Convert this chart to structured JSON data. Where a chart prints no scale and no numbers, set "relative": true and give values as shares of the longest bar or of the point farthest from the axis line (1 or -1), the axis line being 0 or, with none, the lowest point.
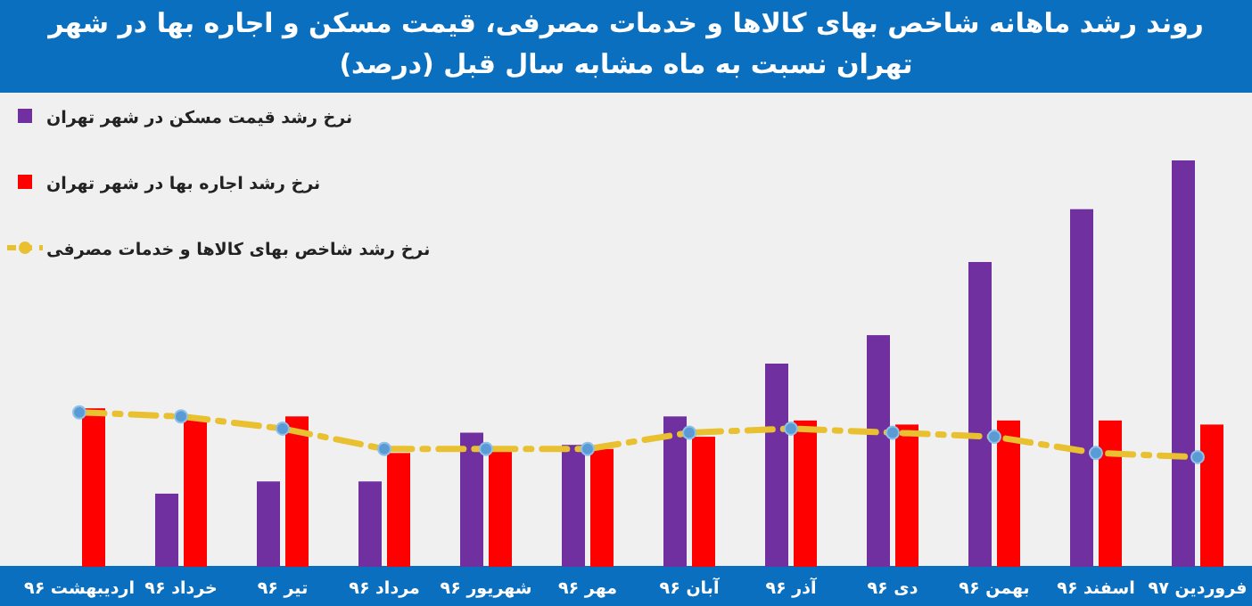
{
  "chart_data": {
    "type": "bar",
    "title": "روند رشد ماهانه شاخص بهای کالاها و خدمات مصرفی، قیمت مسکن و اجاره بها در شهر تهران نسبت به ماه مشابه سال قبل (درصد)",
    "relative": true,
    "legend": "top left",
    "marker": "circle",
    "line_style": "dashed",
    "categories": [
      "اردیبهشت ۹۶",
      "خرداد ۹۶",
      "تیر ۹۶",
      "مرداد ۹۶",
      "شهریور ۹۶",
      "مهر ۹۶",
      "آبان ۹۶",
      "آذر ۹۶",
      "دی ۹۶",
      "بهمن ۹۶",
      "اسفند ۹۶",
      "فروردین ۹۷"
    ],
    "series": [
      {
        "name": "نرخ رشد قیمت مسکن در شهر تهران",
        "color": "#7030a0",
        "values": [
          null,
          0.18,
          0.21,
          0.21,
          0.33,
          0.3,
          0.37,
          0.5,
          0.57,
          0.75,
          0.88,
          1
        ]
      },
      {
        "name": "نرخ رشد اجاره بها در شهر تهران",
        "color": "#ff0000",
        "values": [
          0.39,
          0.37,
          0.37,
          0.28,
          0.29,
          0.29,
          0.32,
          0.36,
          0.35,
          0.36,
          0.36,
          0.35
        ]
      },
      {
        "name": "نرخ رشد شاخص بهای کالاها و خدمات مصرفی",
        "color": "#e8c030",
        "type": "line",
        "values": [
          0.38,
          0.37,
          0.34,
          0.29,
          0.29,
          0.29,
          0.33,
          0.34,
          0.33,
          0.32,
          0.28,
          0.27
        ]
      }
    ]
  }
}
